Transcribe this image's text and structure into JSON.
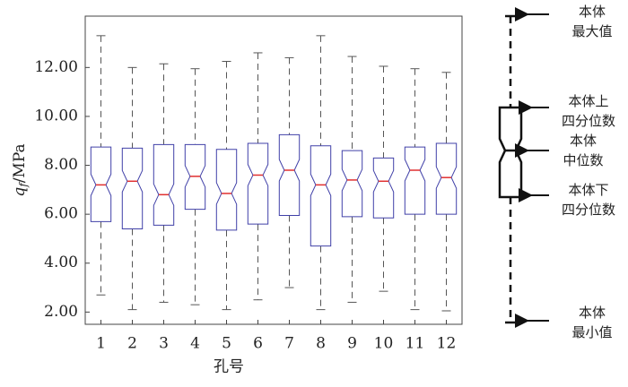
{
  "chart_data": {
    "type": "boxplot",
    "x_label": "孔号",
    "y_label": {
      "symbol": "q",
      "subscript": "f",
      "unit": "/MPa"
    },
    "categories": [
      "1",
      "2",
      "3",
      "4",
      "5",
      "6",
      "7",
      "8",
      "9",
      "10",
      "11",
      "12"
    ],
    "boxes": [
      {
        "low": 2.7,
        "q1": 5.7,
        "median": 7.2,
        "q3": 8.75,
        "high": 13.3
      },
      {
        "low": 2.1,
        "q1": 5.4,
        "median": 7.35,
        "q3": 8.7,
        "high": 12.0
      },
      {
        "low": 2.4,
        "q1": 5.55,
        "median": 6.8,
        "q3": 8.85,
        "high": 12.15
      },
      {
        "low": 2.3,
        "q1": 6.2,
        "median": 7.55,
        "q3": 8.85,
        "high": 11.95
      },
      {
        "low": 2.1,
        "q1": 5.35,
        "median": 6.85,
        "q3": 8.65,
        "high": 12.25
      },
      {
        "low": 2.5,
        "q1": 5.6,
        "median": 7.6,
        "q3": 8.9,
        "high": 12.6
      },
      {
        "low": 3.0,
        "q1": 5.95,
        "median": 7.8,
        "q3": 9.25,
        "high": 12.4
      },
      {
        "low": 2.1,
        "q1": 4.7,
        "median": 7.2,
        "q3": 8.8,
        "high": 13.3
      },
      {
        "low": 2.4,
        "q1": 5.9,
        "median": 7.4,
        "q3": 8.6,
        "high": 12.45
      },
      {
        "low": 2.85,
        "q1": 5.85,
        "median": 7.35,
        "q3": 8.3,
        "high": 12.05
      },
      {
        "low": 2.1,
        "q1": 6.0,
        "median": 7.8,
        "q3": 8.75,
        "high": 11.95
      },
      {
        "low": 2.05,
        "q1": 6.0,
        "median": 7.5,
        "q3": 8.9,
        "high": 11.8
      }
    ],
    "box_color": "#4040a8",
    "median_color": "#e03030",
    "whisker_color": "#555555",
    "ylim": [
      1.5,
      14.1
    ],
    "yticks": [
      {
        "value": 2,
        "label": "2.00"
      },
      {
        "value": 4,
        "label": "4.00"
      },
      {
        "value": 6,
        "label": "6.00"
      },
      {
        "value": 8,
        "label": "8.00"
      },
      {
        "value": 10,
        "label": "10.00"
      },
      {
        "value": 12,
        "label": "12.00"
      }
    ],
    "legend": {
      "max": [
        "本体",
        "最大值"
      ],
      "q3": [
        "本体上",
        "四分位数"
      ],
      "median": [
        "本体",
        "中位数"
      ],
      "q1": [
        "本体下",
        "四分位数"
      ],
      "min": [
        "本体",
        "最小值"
      ]
    }
  }
}
